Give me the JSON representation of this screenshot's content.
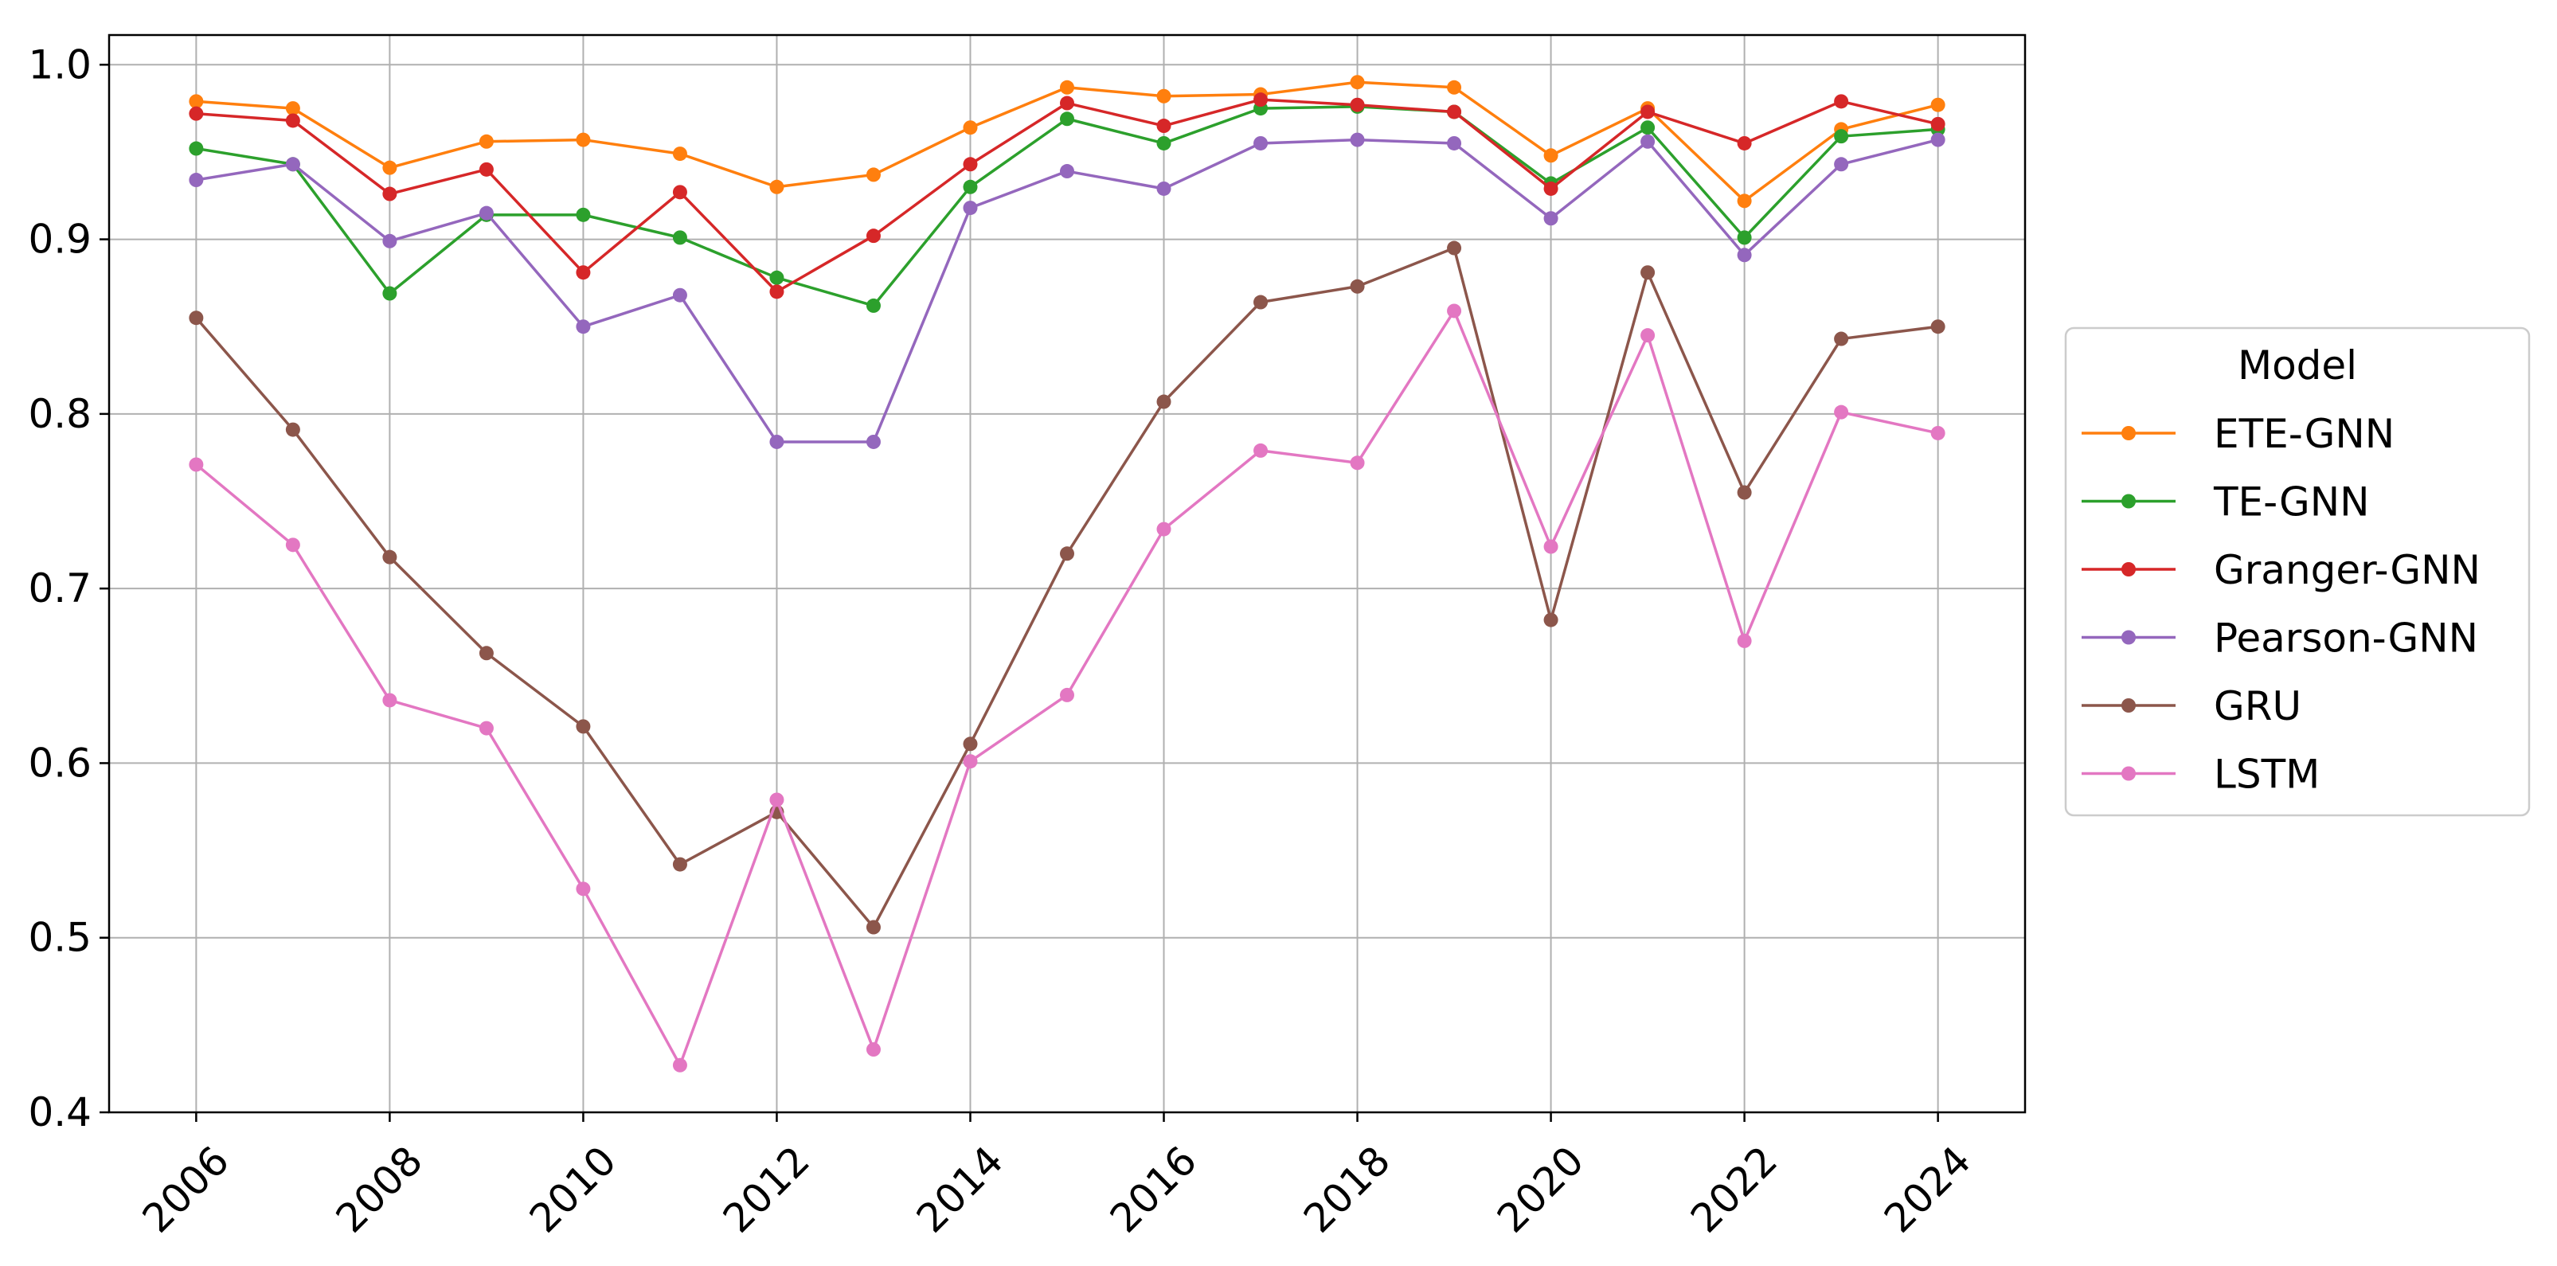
{
  "chart_data": {
    "type": "line",
    "title": "",
    "xlabel": "",
    "ylabel": "",
    "x": [
      2006,
      2007,
      2008,
      2009,
      2010,
      2011,
      2012,
      2013,
      2014,
      2015,
      2016,
      2017,
      2018,
      2019,
      2020,
      2021,
      2022,
      2023,
      2024
    ],
    "xticks": [
      "2006",
      "2008",
      "2010",
      "2012",
      "2014",
      "2016",
      "2018",
      "2020",
      "2022",
      "2024"
    ],
    "yticks": [
      "0.4",
      "0.5",
      "0.6",
      "0.7",
      "0.8",
      "0.9",
      "1.0"
    ],
    "xlim": [
      2005.1,
      2024.9
    ],
    "ylim": [
      0.4,
      1.017
    ],
    "grid": true,
    "legend": {
      "title": "Model",
      "placement": "center-right, outside plot"
    },
    "series": [
      {
        "name": "ETE-GNN",
        "color": "#ff7f0e",
        "values": [
          0.979,
          0.975,
          0.941,
          0.956,
          0.957,
          0.949,
          0.93,
          0.937,
          0.964,
          0.987,
          0.982,
          0.983,
          0.99,
          0.987,
          0.948,
          0.975,
          0.922,
          0.963,
          0.977
        ]
      },
      {
        "name": "TE-GNN",
        "color": "#2ca02c",
        "values": [
          0.952,
          0.943,
          0.869,
          0.914,
          0.914,
          0.901,
          0.878,
          0.862,
          0.93,
          0.969,
          0.955,
          0.975,
          0.976,
          0.973,
          0.932,
          0.964,
          0.901,
          0.959,
          0.963
        ]
      },
      {
        "name": "Granger-GNN",
        "color": "#d62728",
        "values": [
          0.972,
          0.968,
          0.926,
          0.94,
          0.881,
          0.927,
          0.87,
          0.902,
          0.943,
          0.978,
          0.965,
          0.98,
          0.977,
          0.973,
          0.929,
          0.973,
          0.955,
          0.979,
          0.966
        ]
      },
      {
        "name": "Pearson-GNN",
        "color": "#9467bd",
        "values": [
          0.934,
          0.943,
          0.899,
          0.915,
          0.85,
          0.868,
          0.784,
          0.784,
          0.918,
          0.939,
          0.929,
          0.955,
          0.957,
          0.955,
          0.912,
          0.956,
          0.891,
          0.943,
          0.957
        ]
      },
      {
        "name": "GRU",
        "color": "#8c564b",
        "values": [
          0.855,
          0.791,
          0.718,
          0.663,
          0.621,
          0.542,
          0.572,
          0.506,
          0.611,
          0.72,
          0.807,
          0.864,
          0.873,
          0.895,
          0.682,
          0.881,
          0.755,
          0.843,
          0.85
        ]
      },
      {
        "name": "LSTM",
        "color": "#e377c2",
        "values": [
          0.771,
          0.725,
          0.636,
          0.62,
          0.528,
          0.427,
          0.579,
          0.436,
          0.601,
          0.639,
          0.734,
          0.779,
          0.772,
          0.859,
          0.724,
          0.845,
          0.67,
          0.801,
          0.789
        ]
      }
    ]
  }
}
